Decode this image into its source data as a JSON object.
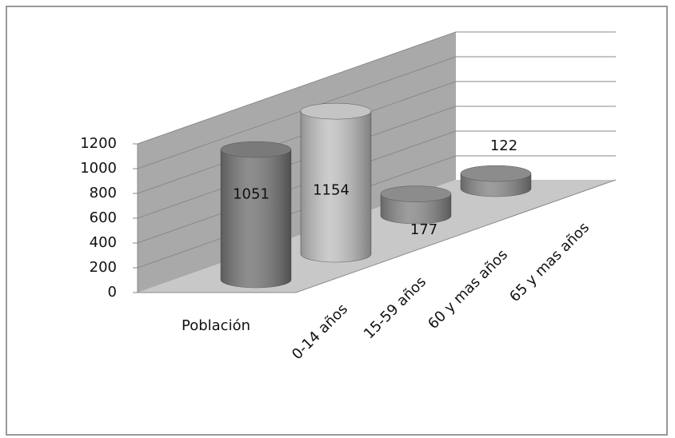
{
  "chart_data": {
    "type": "cylinder",
    "categories": [
      "Población",
      "0-14 años",
      "15-59 años",
      "60 y mas años",
      "65 y mas años"
    ],
    "values": [
      1051,
      1154,
      177,
      122,
      null
    ],
    "colors": [
      "#7a7a7a",
      "#c4c4c4",
      "#8c8c8c",
      "#8c8c8c",
      "#8c8c8c"
    ],
    "ylim": [
      0,
      1200
    ],
    "yticks": [
      0,
      200,
      400,
      600,
      800,
      1000,
      1200
    ],
    "grid": true
  }
}
